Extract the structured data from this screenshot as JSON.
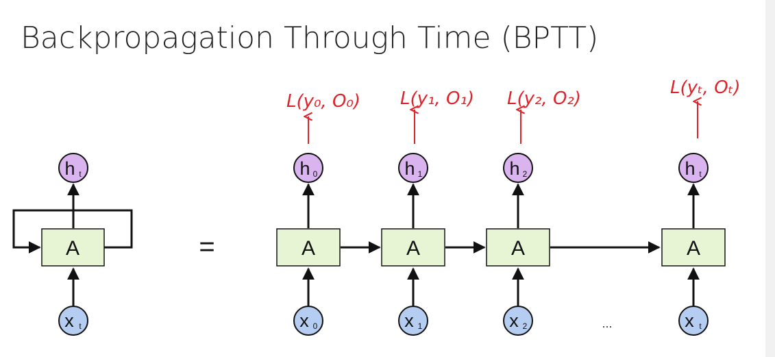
{
  "title": "Backpropagation Through Time (BPTT)",
  "colors": {
    "cell_fill": "#e8f5d5",
    "hidden_fill": "#d9b4ef",
    "input_fill": "#b5cdf0",
    "annotation": "#e0232a"
  },
  "folded": {
    "cell": "A",
    "hidden": {
      "main": "h",
      "sub": "t"
    },
    "input": {
      "main": "x",
      "sub": "t"
    }
  },
  "equals": "=",
  "unrolled": [
    {
      "cell": "A",
      "hidden": {
        "main": "h",
        "sub": "0"
      },
      "input": {
        "main": "x",
        "sub": "0"
      },
      "loss": "L(y₀, O₀)"
    },
    {
      "cell": "A",
      "hidden": {
        "main": "h",
        "sub": "1"
      },
      "input": {
        "main": "x",
        "sub": "1"
      },
      "loss": "L(y₁, O₁)"
    },
    {
      "cell": "A",
      "hidden": {
        "main": "h",
        "sub": "2"
      },
      "input": {
        "main": "x",
        "sub": "2"
      },
      "loss": "L(y₂, O₂)"
    },
    {
      "cell": "A",
      "hidden": {
        "main": "h",
        "sub": "t"
      },
      "input": {
        "main": "x",
        "sub": "t"
      },
      "loss": "L(yₜ, Oₜ)"
    }
  ],
  "ellipsis": "..."
}
